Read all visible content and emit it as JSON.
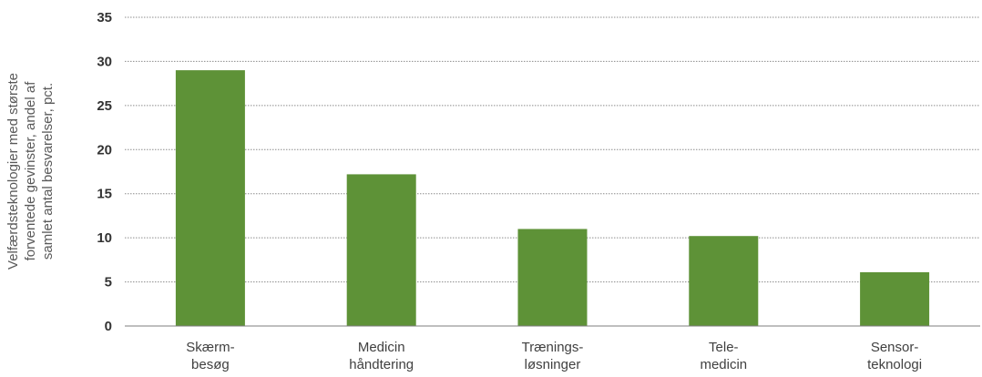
{
  "chart_data": {
    "type": "bar",
    "title": "",
    "xlabel": "",
    "ylabel_lines": [
      "Velfærdsteknologier med største",
      "forventede gevinster, andel af",
      "samlet antal besvarelser, pct."
    ],
    "categories": [
      [
        "Skærm-",
        "besøg"
      ],
      [
        "Medicin",
        "håndtering"
      ],
      [
        "Trænings-",
        "løsninger"
      ],
      [
        "Tele-",
        "medicin"
      ],
      [
        "Sensor-",
        "teknologi"
      ]
    ],
    "values": [
      29,
      17.2,
      11,
      10.2,
      6.1
    ],
    "ylim": [
      0,
      35
    ],
    "yticks": [
      "0",
      "5",
      "10",
      "15",
      "20",
      "25",
      "30",
      "35"
    ],
    "grid": true,
    "legend": "none",
    "colors": {
      "bar": "#5e9237",
      "grid": "#8c8c8c",
      "axis": "#7f7f7f"
    }
  }
}
